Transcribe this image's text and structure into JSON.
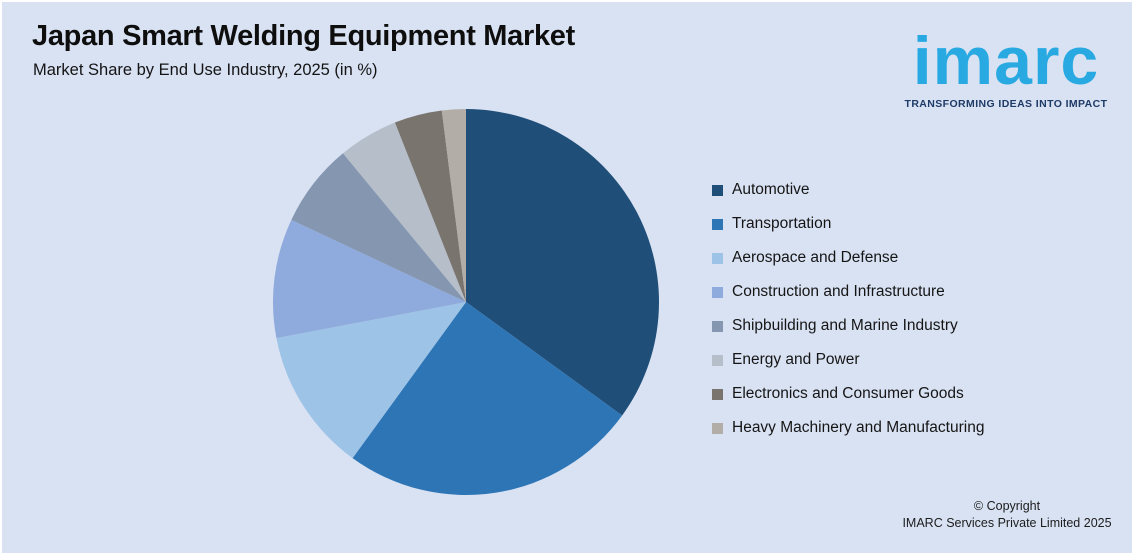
{
  "background_color": "#D9E2F3",
  "header": {
    "title": "Japan Smart Welding Equipment Market",
    "subtitle": "Market Share by End Use Industry, 2025 (in %)"
  },
  "logo": {
    "text": "imarc",
    "tagline": "TRANSFORMING IDEAS INTO IMPACT",
    "brand_color": "#29A9E1",
    "tagline_color": "#1E3A67"
  },
  "chart_data": {
    "type": "pie",
    "title": "Japan Smart Welding Equipment Market",
    "subtitle": "Market Share by End Use Industry, 2025 (in %)",
    "unit": "percent",
    "start_angle_deg": 0,
    "direction": "clockwise",
    "legend_position": "right",
    "labels": [
      "Automotive",
      "Transportation",
      "Aerospace and Defense",
      "Construction and Infrastructure",
      "Shipbuilding and Marine Industry",
      "Energy and Power",
      "Electronics and Consumer Goods",
      "Heavy Machinery and Manufacturing"
    ],
    "values": [
      35,
      25,
      12,
      10,
      7,
      5,
      4,
      2
    ],
    "colors": [
      "#1F4E79",
      "#2E75B6",
      "#9DC3E6",
      "#8FAADC",
      "#8496B0",
      "#B5BEC9",
      "#79746E",
      "#B3ADA7"
    ]
  },
  "footer": {
    "copyright_line1": "© Copyright",
    "copyright_line2": "IMARC Services Private Limited 2025"
  }
}
